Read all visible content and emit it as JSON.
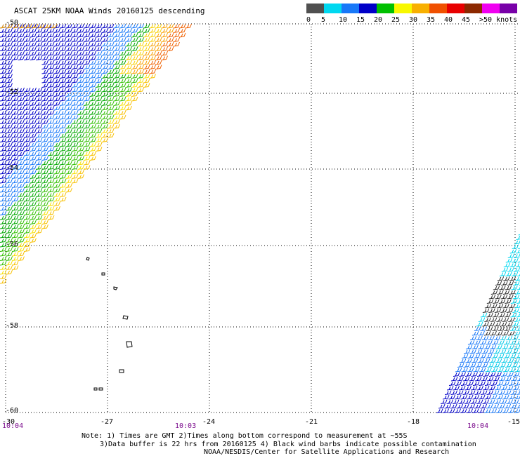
{
  "title": "ASCAT 25KM NOAA Winds 20160125 descending",
  "legend": {
    "unit": "knots",
    "labels": [
      "0",
      "5",
      "10",
      "15",
      "20",
      "25",
      "30",
      "35",
      "40",
      "45",
      ">50 knots"
    ],
    "colors": [
      "#505050",
      "#00d8f0",
      "#1878f8",
      "#0000c8",
      "#00c000",
      "#f8f800",
      "#f8b000",
      "#f05000",
      "#e80000",
      "#8c2800",
      "#f000f0",
      "#7800a8"
    ]
  },
  "map": {
    "lat_labels": [
      "-50",
      "-52",
      "-54",
      "-56",
      "-58",
      "-60"
    ],
    "lon_labels": [
      "-30",
      "-27",
      "-24",
      "-21",
      "-18",
      "-15"
    ],
    "time_labels": [
      "10:04",
      "10:03",
      "10:04"
    ]
  },
  "notes": {
    "line1": "Note: 1) Times are GMT 2)Times along bottom correspond to measurement at ~55S",
    "line2": "3)Data buffer is 22 hrs from 20160125 4) Black wind barbs indicate possible contamination",
    "line3": "NOAA/NESDIS/Center for Satellite Applications and Research"
  }
}
